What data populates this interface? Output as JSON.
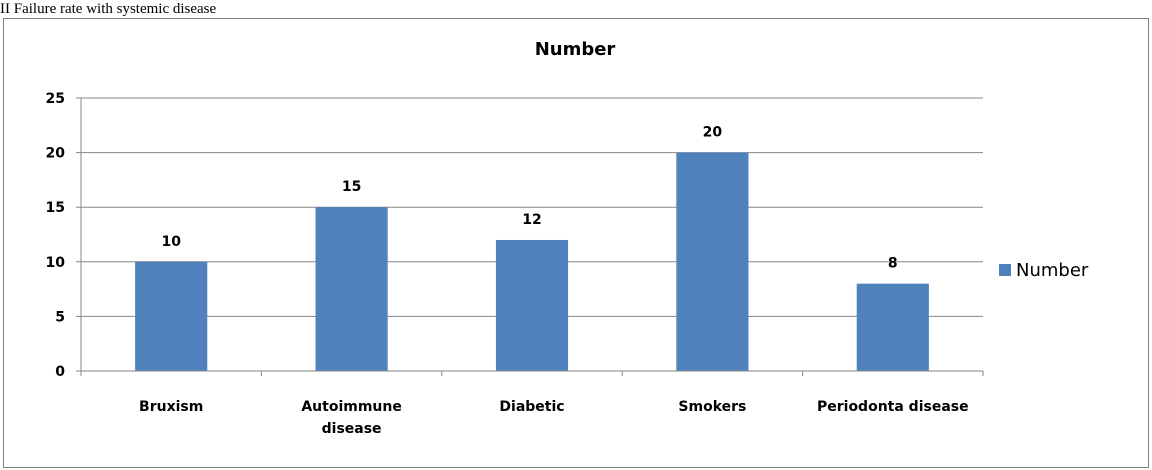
{
  "caption": "II Failure rate with systemic disease",
  "chart_data": {
    "type": "bar",
    "title": "Number",
    "xlabel": "",
    "ylabel": "",
    "categories": [
      [
        "Bruxism"
      ],
      [
        "Autoimmune",
        "disease"
      ],
      [
        "Diabetic"
      ],
      [
        "Smokers"
      ],
      [
        "Periodonta disease"
      ]
    ],
    "series": [
      {
        "name": "Number",
        "values": [
          10,
          15,
          12,
          20,
          8
        ],
        "color": "#4F81BD"
      }
    ],
    "data_labels": [
      "10",
      "15",
      "12",
      "20",
      "8"
    ],
    "ylim": [
      0,
      25
    ],
    "yticks": [
      0,
      5,
      10,
      15,
      20,
      25
    ],
    "grid": true,
    "legend_position": "right"
  }
}
